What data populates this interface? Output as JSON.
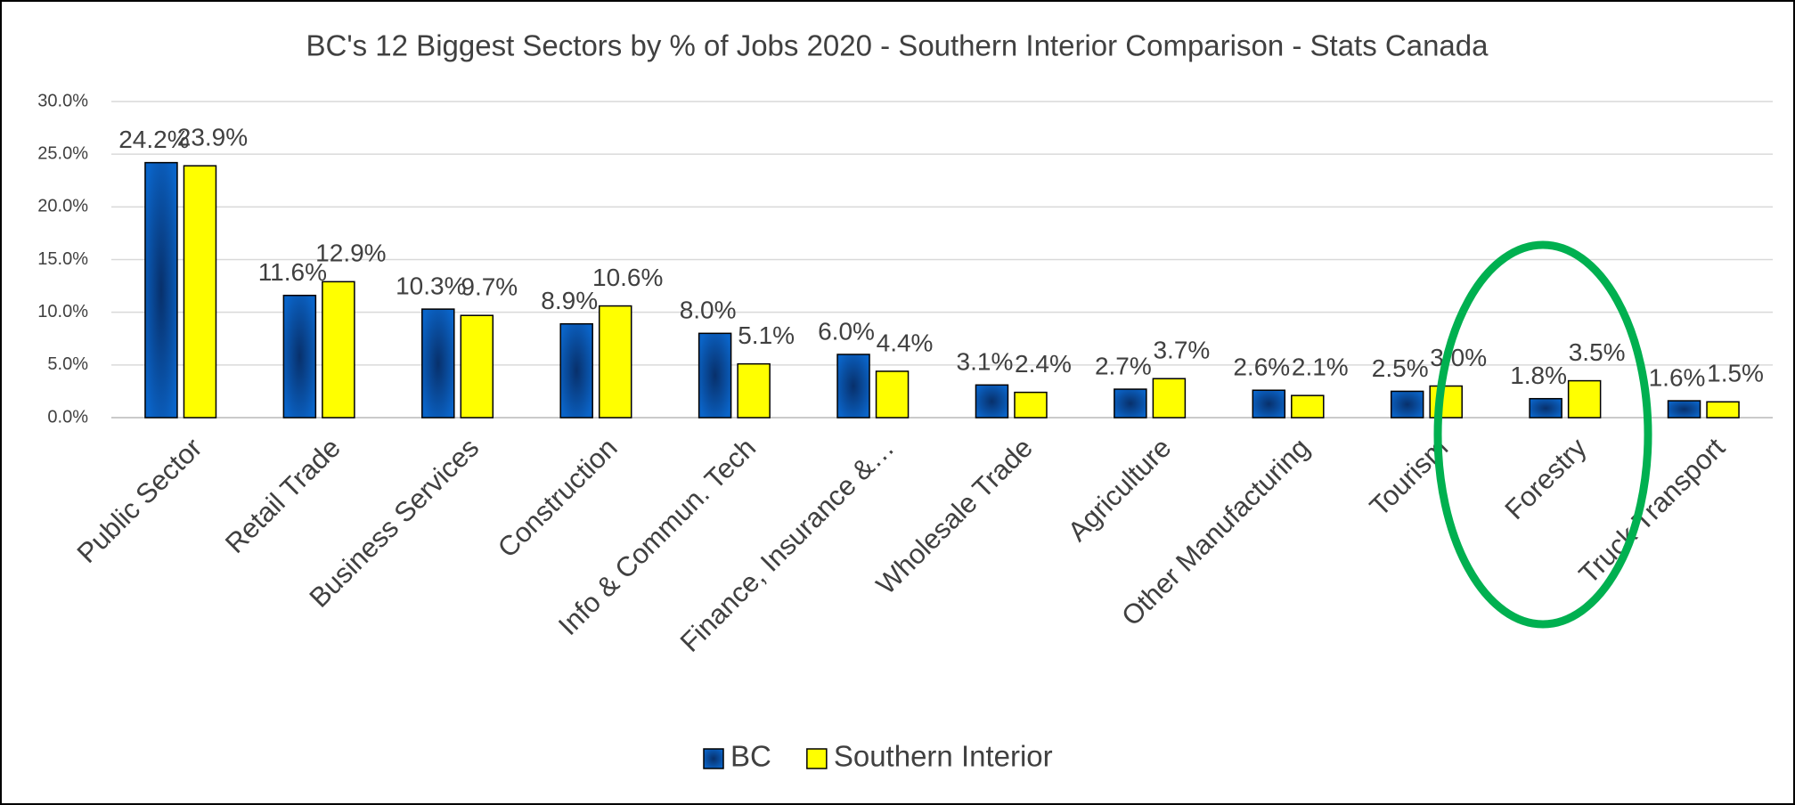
{
  "chart_data": {
    "type": "bar",
    "title": "BC's 12 Biggest Sectors by % of Jobs 2020 - Southern Interior Comparison - Stats Canada",
    "categories": [
      "Public Sector",
      "Retail Trade",
      "Business Services",
      "Construction",
      "Info & Commun. Tech",
      "Finance, Insurance &…",
      "Wholesale Trade",
      "Agriculture",
      "Other Manufacturing",
      "Tourism",
      "Forestry",
      "Truck Transport"
    ],
    "series": [
      {
        "name": "BC",
        "color": "#0a5cb0",
        "values": [
          24.2,
          11.6,
          10.3,
          8.9,
          8.0,
          6.0,
          3.1,
          2.7,
          2.6,
          2.5,
          1.8,
          1.6
        ],
        "value_labels": [
          "24.2%",
          "11.6%",
          "10.3%",
          "8.9%",
          "8.0%",
          "6.0%",
          "3.1%",
          "2.7%",
          "2.6%",
          "2.5%",
          "1.8%",
          "1.6%"
        ]
      },
      {
        "name": "Southern Interior",
        "color": "#ffff00",
        "values": [
          23.9,
          12.9,
          9.7,
          10.6,
          5.1,
          4.4,
          2.4,
          3.7,
          2.1,
          3.0,
          3.5,
          1.5
        ],
        "value_labels": [
          "23.9%",
          "12.9%",
          "9.7%",
          "10.6%",
          "5.1%",
          "4.4%",
          "2.4%",
          "3.7%",
          "2.1%",
          "3.0%",
          "3.5%",
          "1.5%"
        ]
      }
    ],
    "ylim": [
      0,
      30
    ],
    "yticks": [
      {
        "value": 0,
        "label": "0.0%"
      },
      {
        "value": 5,
        "label": "5.0%"
      },
      {
        "value": 10,
        "label": "10.0%"
      },
      {
        "value": 15,
        "label": "15.0%"
      },
      {
        "value": 20,
        "label": "20.0%"
      },
      {
        "value": 25,
        "label": "25.0%"
      },
      {
        "value": 30,
        "label": "30.0%"
      }
    ],
    "grid": true,
    "legend": "bottom"
  }
}
